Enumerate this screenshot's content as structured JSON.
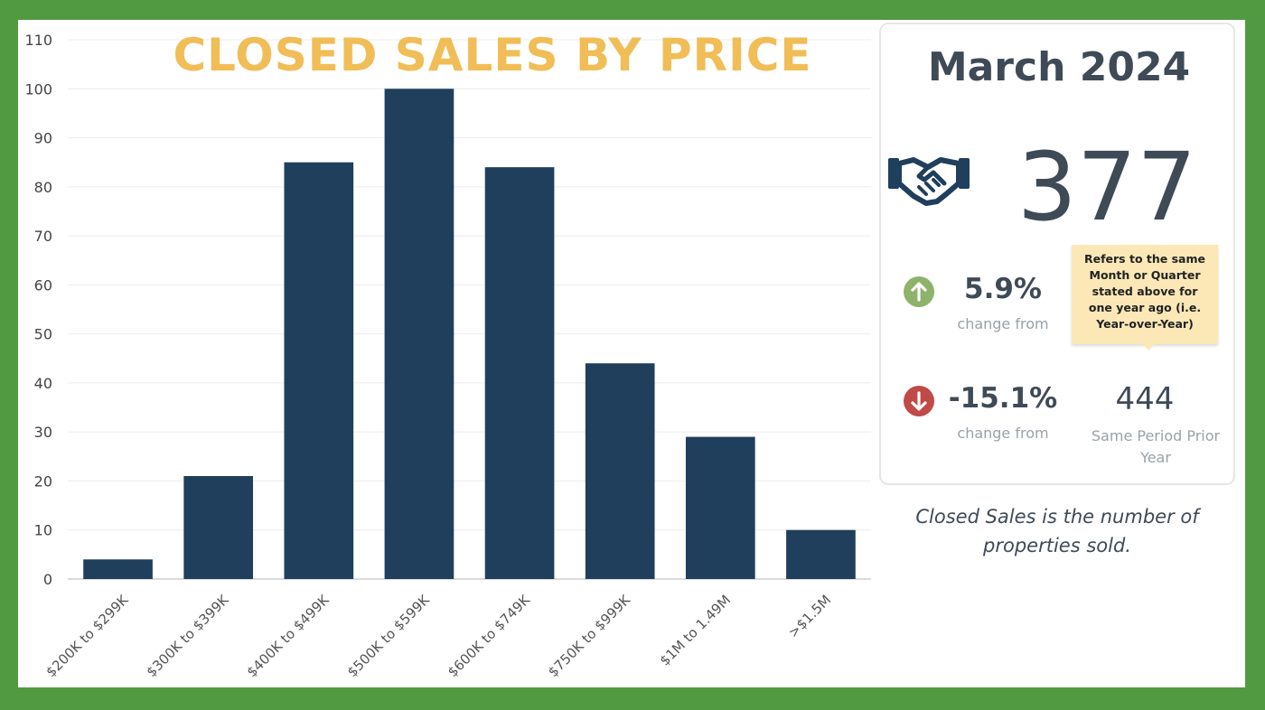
{
  "chart_data": {
    "type": "bar",
    "title": "CLOSED SALES BY PRICE",
    "categories": [
      "$200K to $299K",
      "$300K to $399K",
      "$400K to $499K",
      "$500K to $599K",
      "$600K to $749K",
      "$750K to $999K",
      "$1M to 1.49M",
      ">$1.5M"
    ],
    "values": [
      4,
      21,
      85,
      100,
      84,
      44,
      29,
      10
    ],
    "xlabel": "",
    "ylabel": "",
    "ylim": [
      0,
      110
    ],
    "yticks": [
      0,
      10,
      20,
      30,
      40,
      50,
      60,
      70,
      80,
      90,
      100,
      110
    ],
    "grid": true,
    "bar_color": "#1f3f5c"
  },
  "stats": {
    "period": "March 2024",
    "total": "377",
    "icon": "handshake-icon",
    "change_up": {
      "value": "5.9%",
      "caption": "change from",
      "icon": "arrow-up-icon",
      "color": "#8db36b"
    },
    "change_down": {
      "value": "-15.1%",
      "caption": "change from",
      "icon": "arrow-down-icon",
      "color": "#c04a47"
    },
    "tooltip": "Refers to the same Month or Quarter stated above for one year ago (i.e. Year-over-Year)",
    "prior_value": "444",
    "prior_caption": "Same Period Prior Year"
  },
  "footnote": "Closed Sales is the number of properties sold.",
  "colors": {
    "frame": "#529a42",
    "title": "#f0bd57",
    "text": "#3f4a57"
  }
}
